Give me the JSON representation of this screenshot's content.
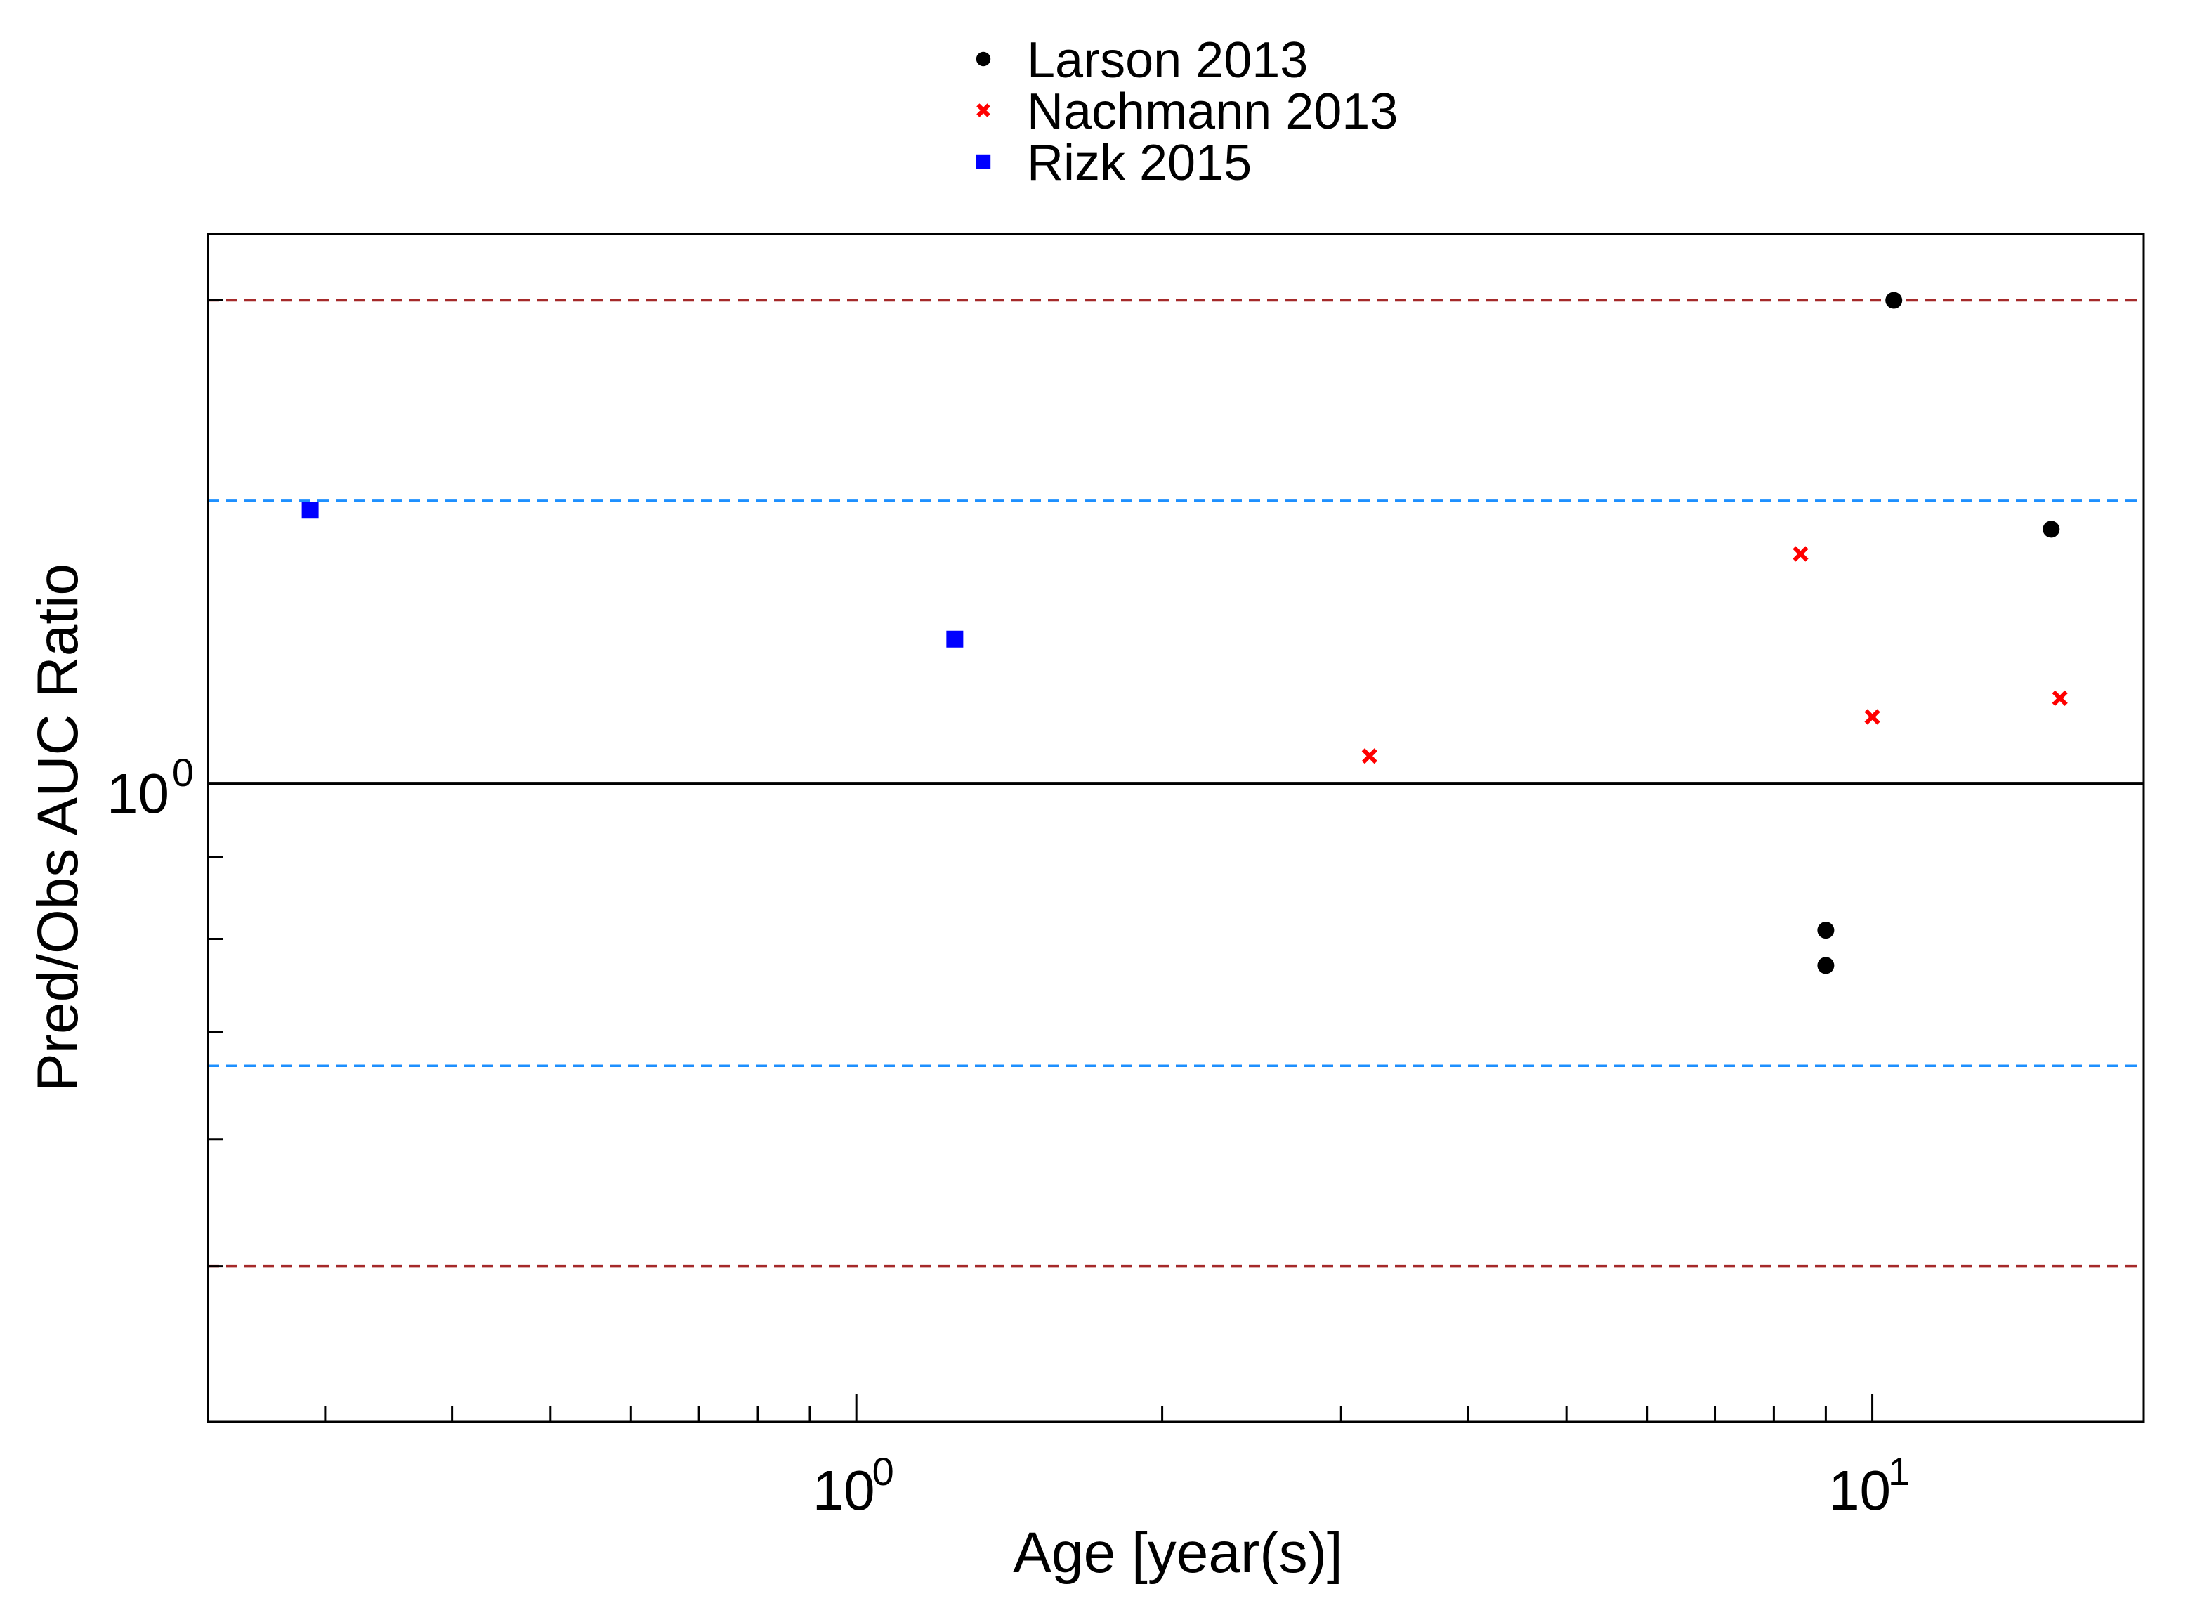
{
  "chart_data": {
    "type": "scatter",
    "title": "",
    "xlabel": "Age [year(s)]",
    "ylabel": "Pred/Obs AUC Ratio",
    "x_scale": "log",
    "y_scale": "log",
    "xlim": [
      0.23,
      18.5
    ],
    "ylim": [
      0.4,
      2.2
    ],
    "x_ticks": [
      {
        "value": 1,
        "label": "10",
        "exp": "0"
      },
      {
        "value": 10,
        "label": "10",
        "exp": "1"
      }
    ],
    "y_ticks": [
      {
        "value": 1,
        "label": "10",
        "exp": "0"
      }
    ],
    "grid": false,
    "legend_position": "top-center",
    "reference_lines": [
      {
        "y": 1.0,
        "style": "solid",
        "color": "#000000"
      },
      {
        "y": 1.5,
        "style": "dashed",
        "color": "#1e90ff"
      },
      {
        "y": 0.6667,
        "style": "dashed",
        "color": "#1e90ff"
      },
      {
        "y": 2.0,
        "style": "dashed",
        "color": "#a52a2a"
      },
      {
        "y": 0.5,
        "style": "dashed",
        "color": "#a52a2a"
      }
    ],
    "series": [
      {
        "name": "Larson 2013",
        "marker": "circle",
        "color": "#000000",
        "points": [
          {
            "x": 10.5,
            "y": 2.0
          },
          {
            "x": 15.0,
            "y": 1.44
          },
          {
            "x": 9.0,
            "y": 0.81
          },
          {
            "x": 9.0,
            "y": 0.77
          }
        ]
      },
      {
        "name": "Nachmann 2013",
        "marker": "x",
        "color": "#ff0000",
        "points": [
          {
            "x": 3.2,
            "y": 1.04
          },
          {
            "x": 8.5,
            "y": 1.39
          },
          {
            "x": 10.0,
            "y": 1.1
          },
          {
            "x": 15.3,
            "y": 1.13
          }
        ]
      },
      {
        "name": "Rizk 2015",
        "marker": "square",
        "color": "#0000ff",
        "points": [
          {
            "x": 0.29,
            "y": 1.48
          },
          {
            "x": 1.25,
            "y": 1.23
          }
        ]
      }
    ]
  }
}
